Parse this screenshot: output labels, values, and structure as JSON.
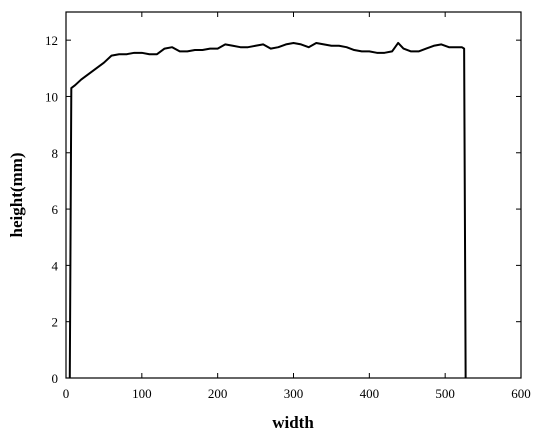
{
  "chart_data": {
    "type": "line",
    "x_label": "width",
    "y_label": "height(mm)",
    "xlim": [
      0,
      600
    ],
    "ylim": [
      0,
      13
    ],
    "xticks": [
      0,
      100,
      200,
      300,
      400,
      500,
      600
    ],
    "yticks": [
      0,
      2,
      4,
      6,
      8,
      10,
      12
    ],
    "grid": false,
    "series": [
      {
        "color": "#000000",
        "x": [
          5,
          7,
          12,
          20,
          30,
          40,
          50,
          60,
          70,
          80,
          90,
          100,
          110,
          120,
          130,
          140,
          150,
          160,
          170,
          180,
          190,
          200,
          210,
          220,
          230,
          240,
          250,
          260,
          270,
          280,
          290,
          300,
          310,
          320,
          330,
          340,
          350,
          360,
          370,
          380,
          390,
          400,
          410,
          420,
          430,
          438,
          445,
          455,
          465,
          475,
          485,
          495,
          505,
          515,
          522,
          525,
          527
        ],
        "values": [
          0,
          10.3,
          10.4,
          10.6,
          10.8,
          11.0,
          11.2,
          11.45,
          11.5,
          11.5,
          11.55,
          11.55,
          11.5,
          11.5,
          11.7,
          11.75,
          11.6,
          11.6,
          11.65,
          11.65,
          11.7,
          11.7,
          11.85,
          11.8,
          11.75,
          11.75,
          11.8,
          11.85,
          11.7,
          11.75,
          11.85,
          11.9,
          11.85,
          11.75,
          11.9,
          11.85,
          11.8,
          11.8,
          11.75,
          11.65,
          11.6,
          11.6,
          11.55,
          11.55,
          11.6,
          11.9,
          11.7,
          11.6,
          11.6,
          11.7,
          11.8,
          11.85,
          11.75,
          11.75,
          11.75,
          11.7,
          0
        ]
      }
    ]
  }
}
